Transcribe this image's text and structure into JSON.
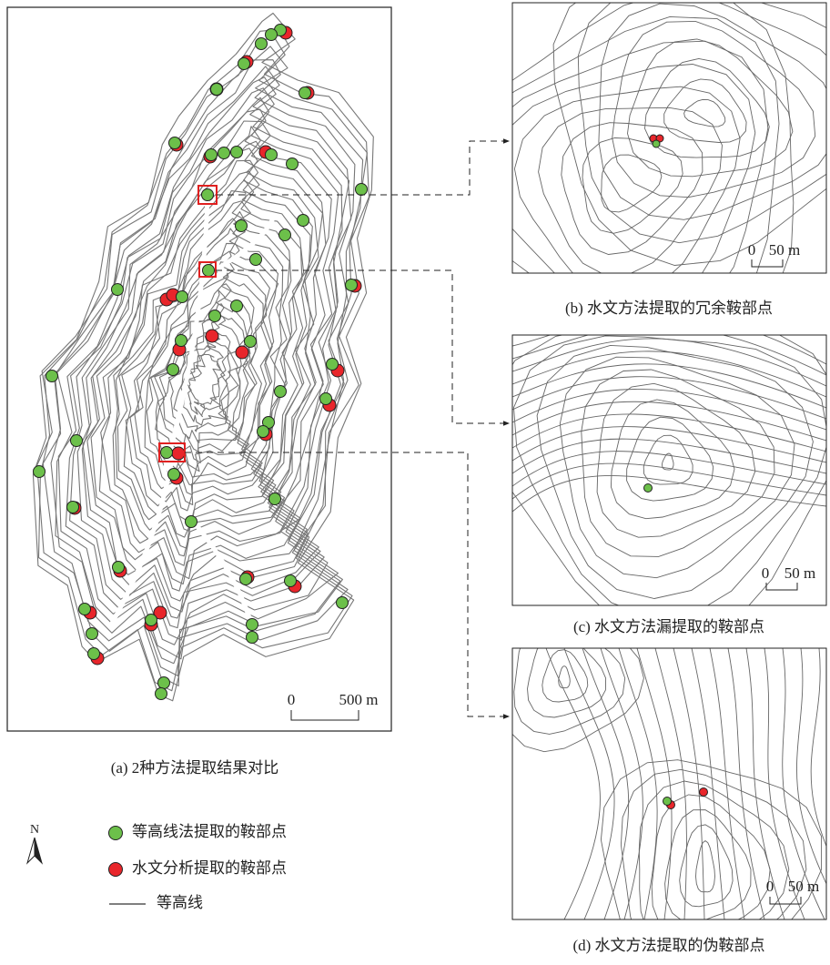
{
  "main": {
    "caption": "(a) 2种方法提取结果对比",
    "scale_zero": "0",
    "scale_label": "500 m"
  },
  "insets": [
    {
      "caption": "(b) 水文方法提取的冗余鞍部点",
      "scale_zero": "0",
      "scale_label": "50 m"
    },
    {
      "caption": "(c) 水文方法漏提取的鞍部点",
      "scale_zero": "0",
      "scale_label": "50 m"
    },
    {
      "caption": "(d) 水文方法提取的伪鞍部点",
      "scale_zero": "0",
      "scale_label": "50 m"
    }
  ],
  "north": "N",
  "legend": [
    "等高线法提取的鞍部点",
    "水文分析提取的鞍部点",
    "等高线"
  ]
}
